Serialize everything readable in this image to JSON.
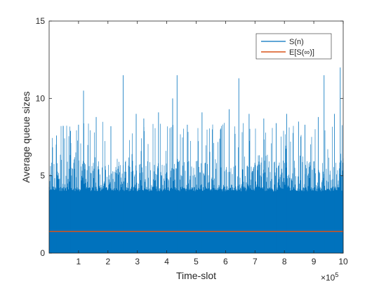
{
  "chart_data": {
    "type": "line",
    "title": "",
    "xlabel": "Time-slot",
    "ylabel": "Average queue sizes",
    "x_exponent_label": "×10",
    "x_exponent_power": "5",
    "xlim": [
      0,
      1000000
    ],
    "ylim": [
      0,
      15
    ],
    "x_ticks": [
      100000,
      200000,
      300000,
      400000,
      500000,
      600000,
      700000,
      800000,
      900000,
      1000000
    ],
    "x_tick_labels": [
      "1",
      "2",
      "3",
      "4",
      "5",
      "6",
      "7",
      "8",
      "9",
      "10"
    ],
    "y_ticks": [
      0,
      5,
      10,
      15
    ],
    "y_tick_labels": [
      "0",
      "5",
      "10",
      "15"
    ],
    "grid": false,
    "legend_position": "top-right",
    "series": [
      {
        "name": "S(n)",
        "color": "#0072BD",
        "description_values": {
          "solid_band_max": 4.0,
          "dense_fluctuation_max": 6.0,
          "typical_spike_max": 8.5
        },
        "peaks": [
          {
            "x": 25000,
            "y": 7.6
          },
          {
            "x": 48000,
            "y": 8.2
          },
          {
            "x": 73000,
            "y": 7.9
          },
          {
            "x": 100000,
            "y": 8.3
          },
          {
            "x": 117000,
            "y": 10.5
          },
          {
            "x": 160000,
            "y": 8.8
          },
          {
            "x": 210000,
            "y": 8.2
          },
          {
            "x": 252000,
            "y": 11.5
          },
          {
            "x": 296000,
            "y": 9.0
          },
          {
            "x": 322000,
            "y": 8.7
          },
          {
            "x": 372000,
            "y": 9.1
          },
          {
            "x": 420000,
            "y": 10.0
          },
          {
            "x": 435000,
            "y": 11.5
          },
          {
            "x": 470000,
            "y": 8.3
          },
          {
            "x": 520000,
            "y": 9.1
          },
          {
            "x": 555000,
            "y": 8.0
          },
          {
            "x": 612000,
            "y": 9.3
          },
          {
            "x": 645000,
            "y": 11.3
          },
          {
            "x": 680000,
            "y": 9.0
          },
          {
            "x": 730000,
            "y": 8.7
          },
          {
            "x": 772000,
            "y": 8.4
          },
          {
            "x": 808000,
            "y": 9.0
          },
          {
            "x": 848000,
            "y": 8.5
          },
          {
            "x": 870000,
            "y": 8.3
          },
          {
            "x": 915000,
            "y": 8.8
          },
          {
            "x": 935000,
            "y": 11.5
          },
          {
            "x": 970000,
            "y": 9.0
          },
          {
            "x": 990000,
            "y": 12.0
          }
        ]
      },
      {
        "name": "E[S(∞)]",
        "color": "#D95319",
        "values": [
          1.4,
          1.4
        ],
        "x": [
          0,
          1000000
        ]
      }
    ]
  }
}
